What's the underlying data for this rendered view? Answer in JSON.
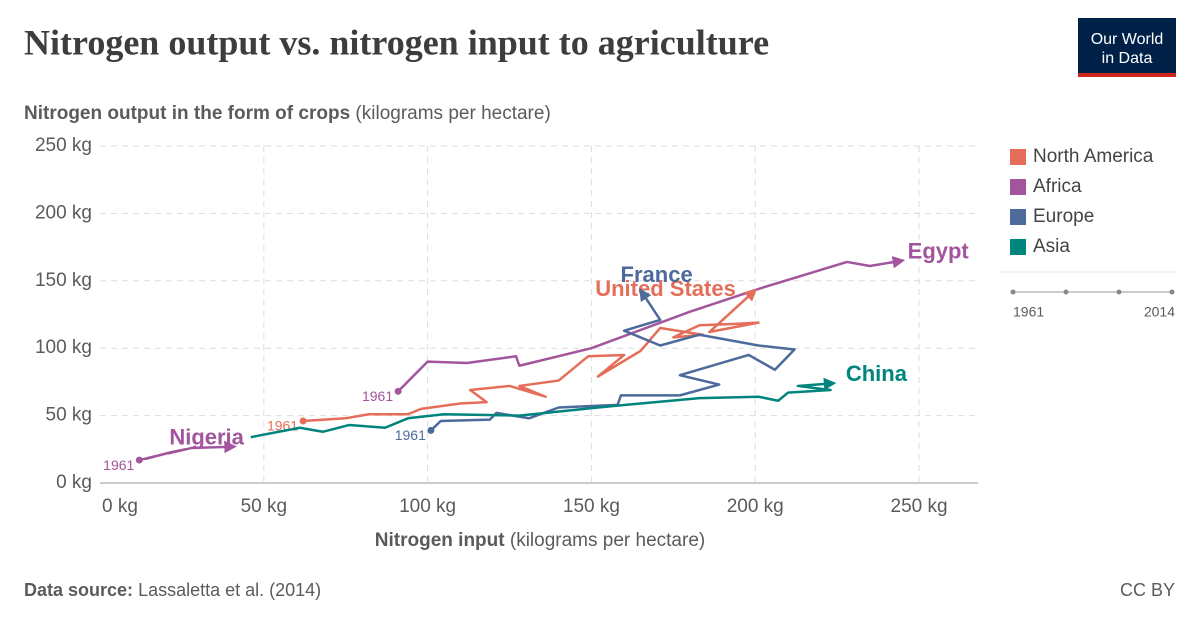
{
  "chart_data": {
    "type": "connected_scatter",
    "title": "Nitrogen output vs. nitrogen input to agriculture",
    "y_label": {
      "main": "Nitrogen output in the form of crops",
      "unit": "(kilograms per hectare)"
    },
    "x_label": {
      "main": "Nitrogen input",
      "unit": "(kilograms per hectare)"
    },
    "xlim": [
      0,
      268
    ],
    "ylim": [
      0,
      250
    ],
    "xticks": [
      {
        "value": 0,
        "label": "0 kg"
      },
      {
        "value": 50,
        "label": "50 kg"
      },
      {
        "value": 100,
        "label": "100 kg"
      },
      {
        "value": 150,
        "label": "150 kg"
      },
      {
        "value": 200,
        "label": "200 kg"
      },
      {
        "value": 250,
        "label": "250 kg"
      }
    ],
    "yticks": [
      {
        "value": 0,
        "label": "0 kg"
      },
      {
        "value": 50,
        "label": "50 kg"
      },
      {
        "value": 100,
        "label": "100 kg"
      },
      {
        "value": 150,
        "label": "150 kg"
      },
      {
        "value": 200,
        "label": "200 kg"
      },
      {
        "value": 250,
        "label": "250 kg"
      }
    ],
    "grid": true,
    "legend": [
      {
        "name": "North America",
        "color": "#e56e5a"
      },
      {
        "name": "Africa",
        "color": "#a2559c"
      },
      {
        "name": "Europe",
        "color": "#4c6a9c"
      },
      {
        "name": "Asia",
        "color": "#00847e"
      }
    ],
    "timeline": {
      "start": "1961",
      "end": "2014"
    },
    "series": [
      {
        "name": "Egypt",
        "color": "#a2559c",
        "start_label": "1961",
        "x": [
          91,
          100,
          112,
          127,
          128,
          150,
          180,
          201,
          228,
          235,
          245
        ],
        "values": [
          68,
          90,
          89,
          94,
          87,
          100,
          127,
          144,
          164,
          161,
          165
        ]
      },
      {
        "name": "United States",
        "color": "#e56e5a",
        "start_label": "1961",
        "x": [
          62,
          75,
          82,
          94,
          98,
          110,
          118,
          113,
          125,
          136,
          128,
          140,
          149,
          160,
          152,
          165,
          171,
          184,
          175,
          183,
          194,
          201,
          186,
          200
        ],
        "values": [
          46,
          48,
          51,
          51,
          55,
          59,
          60,
          69,
          72,
          64,
          72,
          76,
          94,
          95,
          79,
          98,
          115,
          110,
          108,
          117,
          118,
          119,
          112,
          143
        ]
      },
      {
        "name": "France",
        "color": "#4c6a9c",
        "start_label": "1961",
        "x": [
          101,
          104,
          119,
          121,
          131,
          140,
          158,
          159,
          177,
          189,
          177,
          198,
          206,
          212,
          201,
          183,
          171,
          160,
          171,
          165
        ],
        "values": [
          39,
          46,
          47,
          52,
          48,
          56,
          58,
          65,
          65,
          73,
          80,
          95,
          84,
          99,
          102,
          110,
          102,
          113,
          121,
          143
        ]
      },
      {
        "name": "China",
        "color": "#00847e",
        "x": [
          46,
          61,
          68,
          76,
          87,
          94,
          105,
          128,
          152,
          165,
          183,
          201,
          207,
          210,
          223,
          213,
          224
        ],
        "values": [
          34,
          41,
          38,
          43,
          41,
          48,
          51,
          50,
          56,
          59,
          63,
          64,
          61,
          67,
          69,
          72,
          74
        ]
      },
      {
        "name": "Nigeria",
        "color": "#a2559c",
        "start_label": "1961",
        "x": [
          12,
          17,
          14,
          22,
          26,
          21,
          28,
          41
        ],
        "values": [
          17,
          20,
          18,
          23,
          25,
          22,
          26,
          27
        ]
      }
    ]
  },
  "source": {
    "label": "Data source:",
    "text": "Lassaletta et al. (2014)"
  },
  "license": "CC BY",
  "logo": {
    "line1": "Our World",
    "line2": "in Data"
  }
}
